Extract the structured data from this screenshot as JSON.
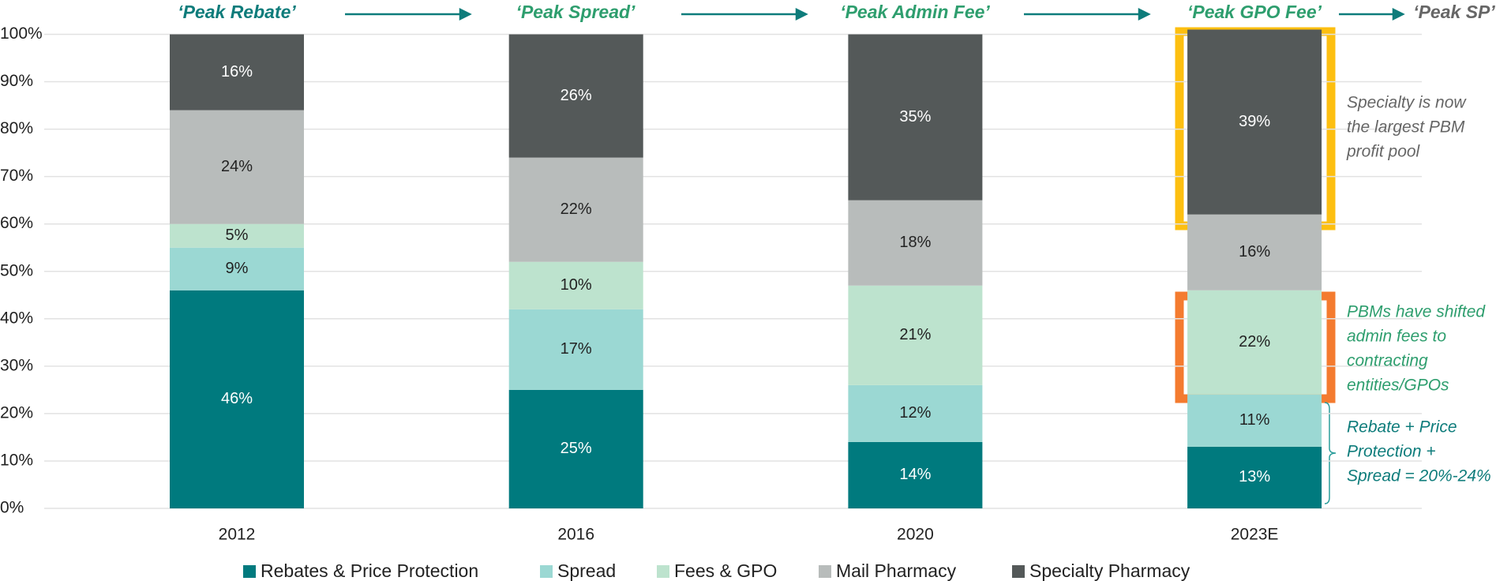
{
  "chart_data": {
    "type": "stacked_bar",
    "categories": [
      "2012",
      "2016",
      "2020",
      "2023E"
    ],
    "series": [
      {
        "name": "Rebates & Price Protection",
        "color": "#007a7e",
        "values": [
          46,
          25,
          14,
          13
        ],
        "value_labels": [
          "46%",
          "25%",
          "14%",
          "13%"
        ]
      },
      {
        "name": "Spread",
        "color": "#9bd8d3",
        "values": [
          9,
          17,
          12,
          11
        ],
        "value_labels": [
          "9%",
          "17%",
          "12%",
          "11%"
        ]
      },
      {
        "name": "Fees & GPO",
        "color": "#bde3ce",
        "values": [
          5,
          10,
          21,
          22
        ],
        "value_labels": [
          "5%",
          "10%",
          "21%",
          "22%"
        ]
      },
      {
        "name": "Mail Pharmacy",
        "color": "#b8bcbb",
        "values": [
          24,
          22,
          18,
          16
        ],
        "value_labels": [
          "24%",
          "22%",
          "18%",
          "16%"
        ]
      },
      {
        "name": "Specialty Pharmacy",
        "color": "#545959",
        "values": [
          16,
          26,
          35,
          39
        ],
        "value_labels": [
          "16%",
          "26%",
          "35%",
          "39%"
        ]
      }
    ],
    "ylim": [
      0,
      100
    ],
    "yticks": [
      {
        "value": 0,
        "label": "0%"
      },
      {
        "value": 10,
        "label": "10%"
      },
      {
        "value": 20,
        "label": "20%"
      },
      {
        "value": 30,
        "label": "30%"
      },
      {
        "value": 40,
        "label": "40%"
      },
      {
        "value": 50,
        "label": "50%"
      },
      {
        "value": 60,
        "label": "60%"
      },
      {
        "value": 70,
        "label": "70%"
      },
      {
        "value": 80,
        "label": "80%"
      },
      {
        "value": 90,
        "label": "90%"
      },
      {
        "value": 100,
        "label": "100%"
      }
    ],
    "grid": true,
    "legend": "bottom",
    "phase_labels": [
      "‘Peak Rebate’",
      "‘Peak Spread’",
      "‘Peak Admin Fee’",
      "‘Peak GPO Fee’",
      "‘Peak SP’"
    ],
    "annotations": [
      {
        "lines": [
          "Specialty is now",
          "the largest PBM",
          "profit pool"
        ]
      },
      {
        "lines": [
          "PBMs have shifted",
          "admin fees to",
          "contracting",
          "entities/GPOs"
        ]
      },
      {
        "lines": [
          "Rebate + Price",
          "Protection +",
          "Spread = 20%-24%"
        ]
      }
    ]
  }
}
